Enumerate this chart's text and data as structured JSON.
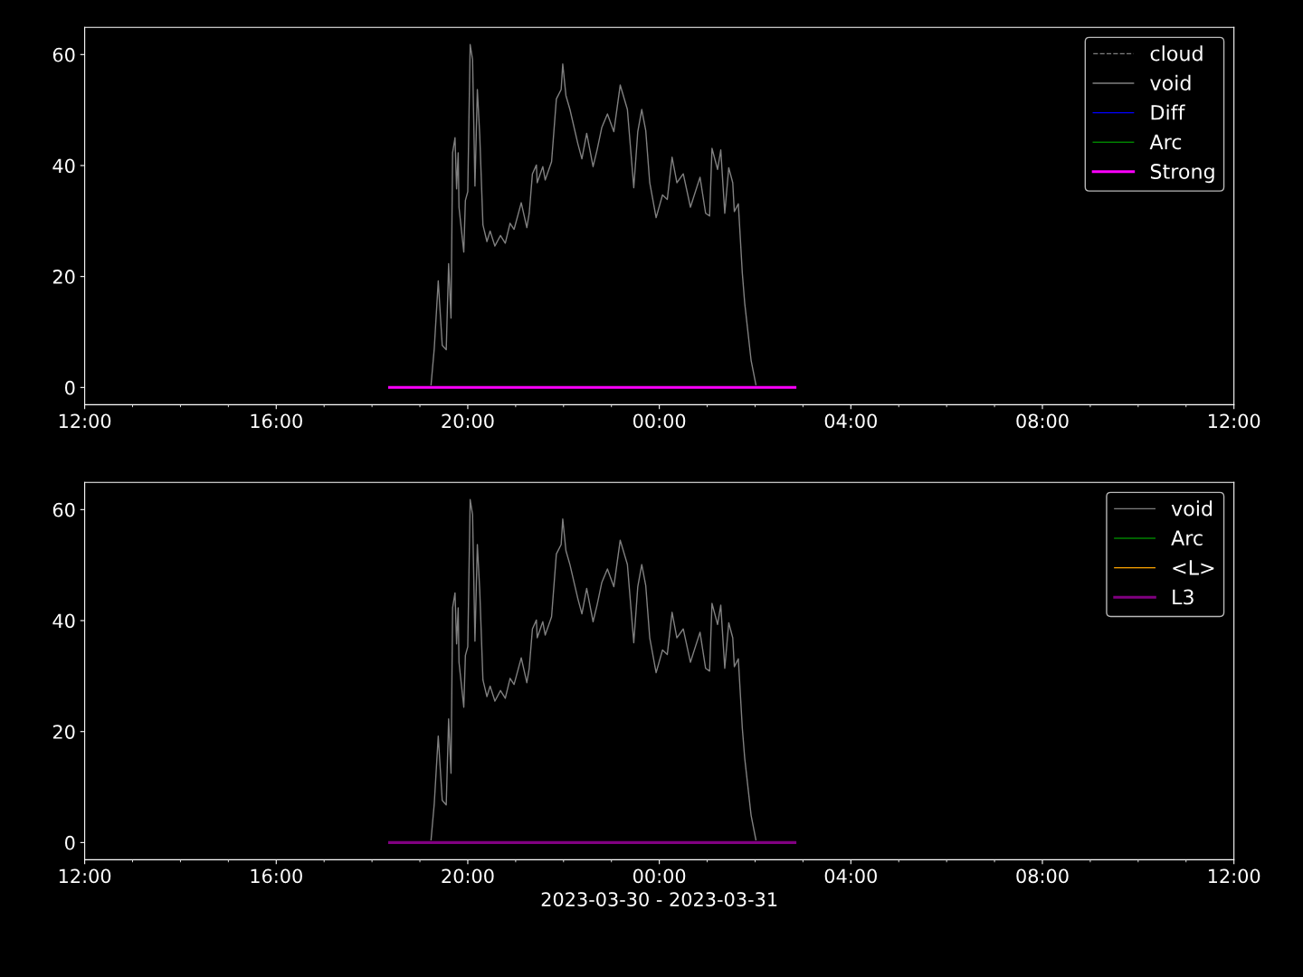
{
  "chart_data": [
    {
      "type": "line",
      "xlim": [
        "2023-03-30T12:00",
        "2023-03-31T12:00"
      ],
      "ylim": [
        -3.1,
        64.9
      ],
      "yticks": [
        0,
        20,
        40,
        60
      ],
      "xticks": [
        {
          "value": "2023-03-30T12:00",
          "label": "12:00"
        },
        {
          "value": "2023-03-30T13:00",
          "label": null
        },
        {
          "value": "2023-03-30T14:00",
          "label": null
        },
        {
          "value": "2023-03-30T15:00",
          "label": null
        },
        {
          "value": "2023-03-30T16:00",
          "label": "16:00"
        },
        {
          "value": "2023-03-30T17:00",
          "label": null
        },
        {
          "value": "2023-03-30T18:00",
          "label": null
        },
        {
          "value": "2023-03-30T19:00",
          "label": null
        },
        {
          "value": "2023-03-30T20:00",
          "label": "20:00"
        },
        {
          "value": "2023-03-30T21:00",
          "label": null
        },
        {
          "value": "2023-03-30T22:00",
          "label": null
        },
        {
          "value": "2023-03-30T23:00",
          "label": null
        },
        {
          "value": "2023-03-31T00:00",
          "label": "00:00"
        },
        {
          "value": "2023-03-31T01:00",
          "label": null
        },
        {
          "value": "2023-03-31T02:00",
          "label": null
        },
        {
          "value": "2023-03-31T03:00",
          "label": null
        },
        {
          "value": "2023-03-31T04:00",
          "label": "04:00"
        },
        {
          "value": "2023-03-31T05:00",
          "label": null
        },
        {
          "value": "2023-03-31T06:00",
          "label": null
        },
        {
          "value": "2023-03-31T07:00",
          "label": null
        },
        {
          "value": "2023-03-31T08:00",
          "label": "08:00"
        },
        {
          "value": "2023-03-31T09:00",
          "label": null
        },
        {
          "value": "2023-03-31T10:00",
          "label": null
        },
        {
          "value": "2023-03-31T11:00",
          "label": null
        },
        {
          "value": "2023-03-31T12:00",
          "label": "12:00"
        }
      ],
      "legend": "top right",
      "series": [
        {
          "name": "cloud",
          "color": "#808080",
          "line_style": "dashed"
        },
        {
          "name": "void",
          "color": "#808080",
          "x": [
            "2023-03-30T19:14",
            "2023-03-30T19:18",
            "2023-03-30T19:23",
            "2023-03-30T19:28",
            "2023-03-30T19:33",
            "2023-03-30T19:36",
            "2023-03-30T19:39",
            "2023-03-30T19:41",
            "2023-03-30T19:44",
            "2023-03-30T19:46",
            "2023-03-30T19:48",
            "2023-03-30T19:49",
            "2023-03-30T19:55",
            "2023-03-30T19:57",
            "2023-03-30T20:00",
            "2023-03-30T20:03",
            "2023-03-30T20:06",
            "2023-03-30T20:09",
            "2023-03-30T20:12",
            "2023-03-30T20:15",
            "2023-03-30T20:19",
            "2023-03-30T20:24",
            "2023-03-30T20:28",
            "2023-03-30T20:34",
            "2023-03-30T20:41",
            "2023-03-30T20:47",
            "2023-03-30T20:53",
            "2023-03-30T20:58",
            "2023-03-30T21:07",
            "2023-03-30T21:14",
            "2023-03-30T21:17",
            "2023-03-30T21:21",
            "2023-03-30T21:26",
            "2023-03-30T21:27",
            "2023-03-30T21:34",
            "2023-03-30T21:37",
            "2023-03-30T21:45",
            "2023-03-30T21:51",
            "2023-03-30T21:57",
            "2023-03-30T21:59",
            "2023-03-30T22:03",
            "2023-03-30T22:08",
            "2023-03-30T22:18",
            "2023-03-30T22:23",
            "2023-03-30T22:29",
            "2023-03-30T22:37",
            "2023-03-30T22:42",
            "2023-03-30T22:48",
            "2023-03-30T22:55",
            "2023-03-30T23:03",
            "2023-03-30T23:11",
            "2023-03-30T23:20",
            "2023-03-30T23:28",
            "2023-03-30T23:33",
            "2023-03-30T23:38",
            "2023-03-30T23:43",
            "2023-03-30T23:48",
            "2023-03-30T23:56",
            "2023-03-31T00:04",
            "2023-03-31T00:10",
            "2023-03-31T00:16",
            "2023-03-31T00:22",
            "2023-03-31T00:30",
            "2023-03-31T00:39",
            "2023-03-31T00:51",
            "2023-03-31T00:58",
            "2023-03-31T01:03",
            "2023-03-31T01:06",
            "2023-03-31T01:13",
            "2023-03-31T01:17",
            "2023-03-31T01:22",
            "2023-03-31T01:27",
            "2023-03-31T01:32",
            "2023-03-31T01:34",
            "2023-03-31T01:39",
            "2023-03-31T01:44",
            "2023-03-31T01:47",
            "2023-03-31T01:55",
            "2023-03-31T02:01"
          ],
          "values": [
            0.5,
            7.0,
            19.2,
            7.6,
            6.8,
            22.3,
            12.5,
            42.3,
            45,
            35.8,
            42.3,
            32.5,
            24.4,
            33.7,
            35.3,
            61.8,
            59.1,
            36.3,
            53.7,
            45.5,
            29.3,
            26.3,
            28.2,
            25.5,
            27.4,
            26,
            29.6,
            28.5,
            33.3,
            28.8,
            31.4,
            38.5,
            40.1,
            36.9,
            39.8,
            37.4,
            40.7,
            52,
            53.7,
            58.3,
            52.6,
            50.1,
            43.9,
            41.2,
            45.8,
            39.8,
            42.8,
            46.9,
            49.3,
            46.1,
            54.5,
            50.1,
            36,
            46.1,
            50.1,
            46.3,
            36.9,
            30.6,
            34.7,
            33.9,
            41.5,
            36.9,
            38.5,
            32.5,
            37.9,
            31.4,
            30.9,
            43.1,
            39.3,
            42.8,
            31.4,
            39.6,
            36.9,
            31.7,
            33.1,
            20.6,
            15.2,
            4.9,
            0.5
          ]
        },
        {
          "name": "Diff",
          "color": "#0000ff"
        },
        {
          "name": "Arc",
          "color": "#008000"
        },
        {
          "name": "Strong",
          "color": "#ff00ff",
          "x": [
            "2023-03-30T18:22",
            "2023-03-31T02:50"
          ],
          "values": [
            0,
            0
          ]
        }
      ]
    },
    {
      "type": "line",
      "xlabel": "2023-03-30 - 2023-03-31",
      "xlim": [
        "2023-03-30T12:00",
        "2023-03-31T12:00"
      ],
      "ylim": [
        -3.1,
        64.9
      ],
      "yticks": [
        0,
        20,
        40,
        60
      ],
      "xticks": [
        {
          "value": "2023-03-30T12:00",
          "label": "12:00"
        },
        {
          "value": "2023-03-30T13:00",
          "label": null
        },
        {
          "value": "2023-03-30T14:00",
          "label": null
        },
        {
          "value": "2023-03-30T15:00",
          "label": null
        },
        {
          "value": "2023-03-30T16:00",
          "label": "16:00"
        },
        {
          "value": "2023-03-30T17:00",
          "label": null
        },
        {
          "value": "2023-03-30T18:00",
          "label": null
        },
        {
          "value": "2023-03-30T19:00",
          "label": null
        },
        {
          "value": "2023-03-30T20:00",
          "label": "20:00"
        },
        {
          "value": "2023-03-30T21:00",
          "label": null
        },
        {
          "value": "2023-03-30T22:00",
          "label": null
        },
        {
          "value": "2023-03-30T23:00",
          "label": null
        },
        {
          "value": "2023-03-31T00:00",
          "label": "00:00"
        },
        {
          "value": "2023-03-31T01:00",
          "label": null
        },
        {
          "value": "2023-03-31T02:00",
          "label": null
        },
        {
          "value": "2023-03-31T03:00",
          "label": null
        },
        {
          "value": "2023-03-31T04:00",
          "label": "04:00"
        },
        {
          "value": "2023-03-31T05:00",
          "label": null
        },
        {
          "value": "2023-03-31T06:00",
          "label": null
        },
        {
          "value": "2023-03-31T07:00",
          "label": null
        },
        {
          "value": "2023-03-31T08:00",
          "label": "08:00"
        },
        {
          "value": "2023-03-31T09:00",
          "label": null
        },
        {
          "value": "2023-03-31T10:00",
          "label": null
        },
        {
          "value": "2023-03-31T11:00",
          "label": null
        },
        {
          "value": "2023-03-31T12:00",
          "label": "12:00"
        }
      ],
      "legend": "top right",
      "series": [
        {
          "name": "void",
          "color": "#808080",
          "x": [
            "2023-03-30T19:14",
            "2023-03-30T19:18",
            "2023-03-30T19:23",
            "2023-03-30T19:28",
            "2023-03-30T19:33",
            "2023-03-30T19:36",
            "2023-03-30T19:39",
            "2023-03-30T19:41",
            "2023-03-30T19:44",
            "2023-03-30T19:46",
            "2023-03-30T19:48",
            "2023-03-30T19:49",
            "2023-03-30T19:55",
            "2023-03-30T19:57",
            "2023-03-30T20:00",
            "2023-03-30T20:03",
            "2023-03-30T20:06",
            "2023-03-30T20:09",
            "2023-03-30T20:12",
            "2023-03-30T20:15",
            "2023-03-30T20:19",
            "2023-03-30T20:24",
            "2023-03-30T20:28",
            "2023-03-30T20:34",
            "2023-03-30T20:41",
            "2023-03-30T20:47",
            "2023-03-30T20:53",
            "2023-03-30T20:58",
            "2023-03-30T21:07",
            "2023-03-30T21:14",
            "2023-03-30T21:17",
            "2023-03-30T21:21",
            "2023-03-30T21:26",
            "2023-03-30T21:27",
            "2023-03-30T21:34",
            "2023-03-30T21:37",
            "2023-03-30T21:45",
            "2023-03-30T21:51",
            "2023-03-30T21:57",
            "2023-03-30T21:59",
            "2023-03-30T22:03",
            "2023-03-30T22:08",
            "2023-03-30T22:18",
            "2023-03-30T22:23",
            "2023-03-30T22:29",
            "2023-03-30T22:37",
            "2023-03-30T22:42",
            "2023-03-30T22:48",
            "2023-03-30T22:55",
            "2023-03-30T23:03",
            "2023-03-30T23:11",
            "2023-03-30T23:20",
            "2023-03-30T23:28",
            "2023-03-30T23:33",
            "2023-03-30T23:38",
            "2023-03-30T23:43",
            "2023-03-30T23:48",
            "2023-03-30T23:56",
            "2023-03-31T00:04",
            "2023-03-31T00:10",
            "2023-03-31T00:16",
            "2023-03-31T00:22",
            "2023-03-31T00:30",
            "2023-03-31T00:39",
            "2023-03-31T00:51",
            "2023-03-31T00:58",
            "2023-03-31T01:03",
            "2023-03-31T01:06",
            "2023-03-31T01:13",
            "2023-03-31T01:17",
            "2023-03-31T01:22",
            "2023-03-31T01:27",
            "2023-03-31T01:32",
            "2023-03-31T01:34",
            "2023-03-31T01:39",
            "2023-03-31T01:44",
            "2023-03-31T01:47",
            "2023-03-31T01:55",
            "2023-03-31T02:01"
          ],
          "values": [
            0.5,
            7.0,
            19.2,
            7.6,
            6.8,
            22.3,
            12.5,
            42.3,
            45,
            35.8,
            42.3,
            32.5,
            24.4,
            33.7,
            35.3,
            61.8,
            59.1,
            36.3,
            53.7,
            45.5,
            29.3,
            26.3,
            28.2,
            25.5,
            27.4,
            26,
            29.6,
            28.5,
            33.3,
            28.8,
            31.4,
            38.5,
            40.1,
            36.9,
            39.8,
            37.4,
            40.7,
            52,
            53.7,
            58.3,
            52.6,
            50.1,
            43.9,
            41.2,
            45.8,
            39.8,
            42.8,
            46.9,
            49.3,
            46.1,
            54.5,
            50.1,
            36,
            46.1,
            50.1,
            46.3,
            36.9,
            30.6,
            34.7,
            33.9,
            41.5,
            36.9,
            38.5,
            32.5,
            37.9,
            31.4,
            30.9,
            43.1,
            39.3,
            42.8,
            31.4,
            39.6,
            36.9,
            31.7,
            33.1,
            20.6,
            15.2,
            4.9,
            0.5
          ]
        },
        {
          "name": "Arc",
          "color": "#008000"
        },
        {
          "name": "<L>",
          "color": "#ffa500"
        },
        {
          "name": "L3",
          "color": "#800080",
          "x": [
            "2023-03-30T18:22",
            "2023-03-31T02:50"
          ],
          "values": [
            0,
            0
          ]
        }
      ]
    }
  ]
}
